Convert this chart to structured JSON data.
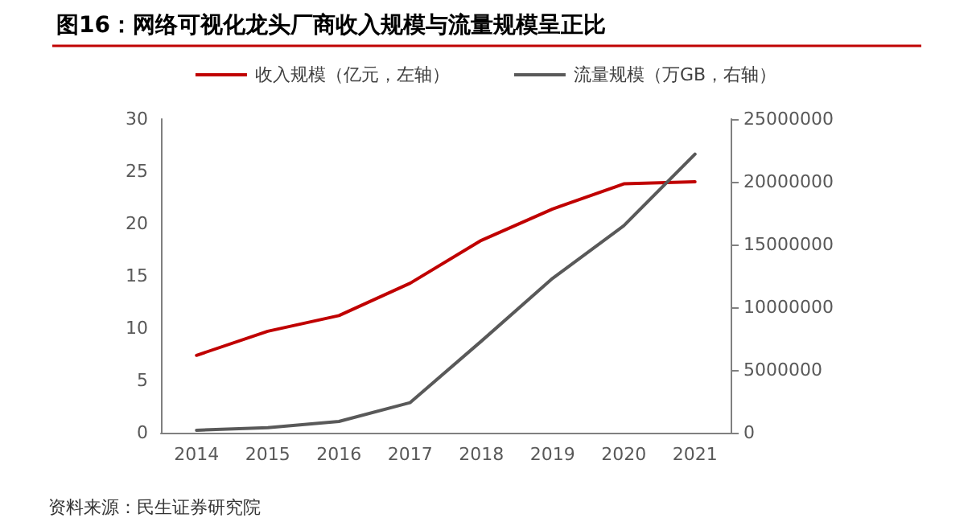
{
  "chart_data": {
    "type": "line",
    "title": "图16：网络可视化龙头厂商收入规模与流量规模呈正比",
    "categories": [
      "2014",
      "2015",
      "2016",
      "2017",
      "2018",
      "2019",
      "2020",
      "2021"
    ],
    "series": [
      {
        "name": "收入规模（亿元，左轴）",
        "color": "#c00000",
        "values": [
          7.4,
          9.7,
          11.2,
          14.3,
          18.4,
          21.4,
          23.8,
          24.0
        ]
      },
      {
        "name": "流量规模（万GB，右轴）",
        "color": "#595959",
        "axis": "y2",
        "values": [
          200000,
          400000,
          900000,
          2400000,
          7300000,
          12300000,
          16500000,
          22200000
        ]
      }
    ],
    "ylim": [
      0,
      30
    ],
    "yticks": [
      0,
      5,
      10,
      15,
      20,
      25,
      30
    ],
    "y2lim": [
      0,
      25000000
    ],
    "y2ticks": [
      0,
      5000000,
      10000000,
      15000000,
      20000000,
      25000000
    ],
    "grid": false,
    "legend": "top",
    "marker": "none",
    "line_style": "solid",
    "annotations": [
      "资料来源：民生证券研究院"
    ]
  }
}
